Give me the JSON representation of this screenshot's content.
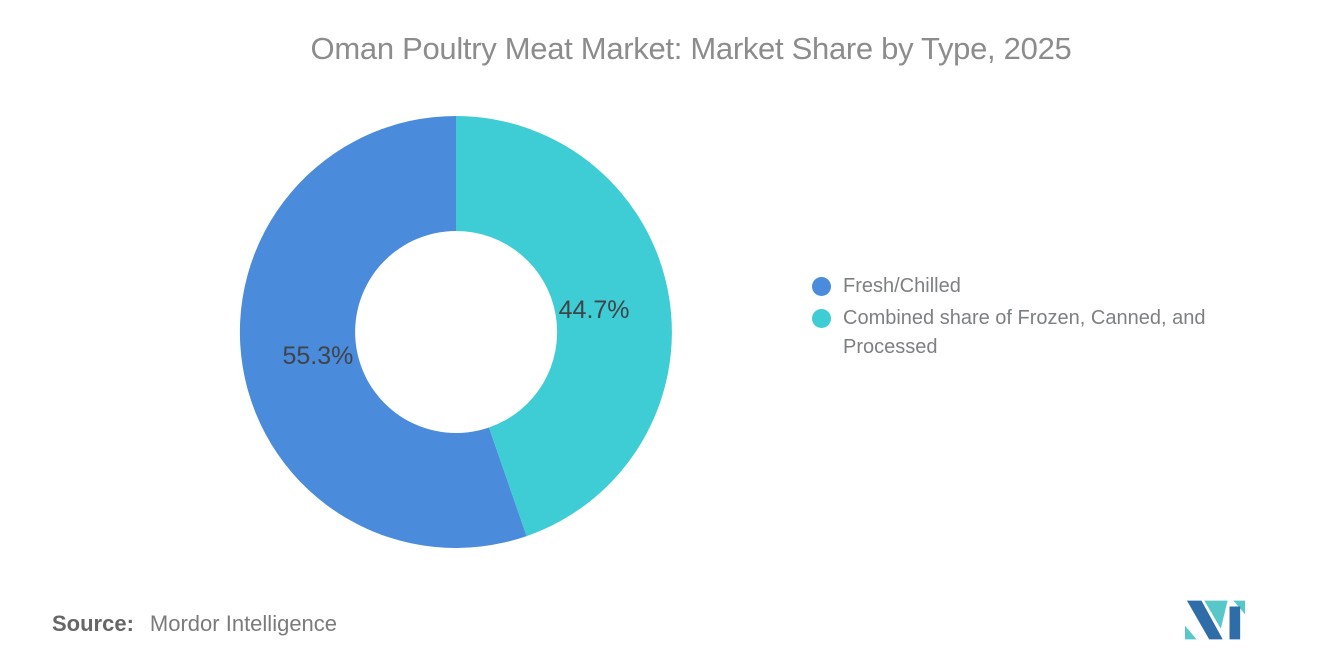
{
  "header": {
    "title": "Oman Poultry Meat Market: Market Share by Type, 2025"
  },
  "chart_data": {
    "type": "pie",
    "subtype": "donut",
    "title": "Oman Poultry Meat Market: Market Share by Type, 2025",
    "categories": [
      "Fresh/Chilled",
      "Combined share of Frozen, Canned, and Processed"
    ],
    "values": [
      55.3,
      44.7
    ],
    "unit": "%",
    "slice_labels": [
      "55.3%",
      "44.7%"
    ],
    "colors": [
      "#4a8bdc",
      "#3ecdd4"
    ],
    "inner_radius_ratio": 0.467,
    "start_angle": "top",
    "direction": "second slice clockwise from 12 o'clock, first slice fills remainder counterclockwise",
    "legend_position": "right",
    "grid": false
  },
  "legend": {
    "items": [
      {
        "label": "Fresh/Chilled",
        "color": "#4a8bdc"
      },
      {
        "label": "Combined share of Frozen, Canned, and Processed",
        "color": "#3ecdd4"
      }
    ]
  },
  "footer": {
    "source_label": "Source:",
    "source_value": "Mordor Intelligence"
  },
  "logo": {
    "alt": "Mordor Intelligence logo",
    "dark": "#2f6da8",
    "light": "#58c7ca"
  },
  "text_colors": {
    "title": "#8c8c8c",
    "slice_label": "#3f4448",
    "legend": "#7d8083",
    "source": "#666666"
  }
}
